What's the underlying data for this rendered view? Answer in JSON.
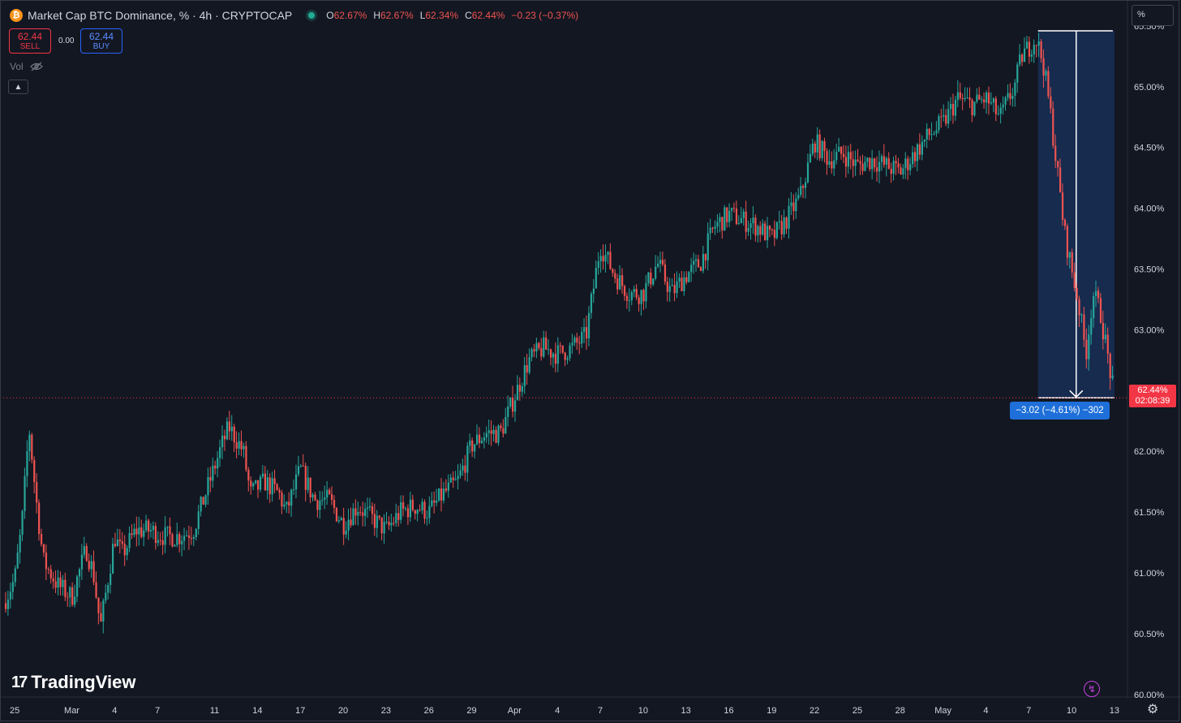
{
  "header": {
    "symbol_title": "Market Cap BTC Dominance, % · 4h · CRYPTOCAP",
    "open_label": "O",
    "open": "62.67%",
    "high_label": "H",
    "high": "62.67%",
    "low_label": "L",
    "low": "62.34%",
    "close_label": "C",
    "close": "62.44%",
    "change": "−0.23 (−0.37%)",
    "btc_logo_glyph": "₿"
  },
  "scale_mode": "%",
  "trade": {
    "sell_price": "62.44",
    "sell_label": "SELL",
    "spread": "0.00",
    "buy_price": "62.44",
    "buy_label": "BUY"
  },
  "indicator": {
    "vol_label": "Vol"
  },
  "branding": {
    "logo_text": "TradingView",
    "logo_mark": "17"
  },
  "current_price": {
    "value": "62.44%",
    "countdown": "02:08:39"
  },
  "measure": {
    "label": "−3.02 (−4.61%) −302",
    "from": 65.46,
    "to": 62.44
  },
  "colors": {
    "up": "#26a69a",
    "down": "#ef5350",
    "background": "#131722",
    "measure": "#1e6fd9"
  },
  "chart_data": {
    "type": "candlestick",
    "timeframe": "4h",
    "y_axis": {
      "ticks": [
        "65.50%",
        "65.00%",
        "64.50%",
        "64.00%",
        "63.50%",
        "63.00%",
        "62.50%",
        "62.00%",
        "61.50%",
        "61.00%",
        "60.50%",
        "60.00%"
      ],
      "ylim": [
        59.985,
        65.66
      ]
    },
    "x_axis": {
      "ticks": [
        "25",
        "Mar",
        "4",
        "7",
        "11",
        "14",
        "17",
        "20",
        "23",
        "26",
        "29",
        "Apr",
        "4",
        "7",
        "10",
        "13",
        "16",
        "19",
        "22",
        "25",
        "28",
        "May",
        "4",
        "7",
        "10",
        "13"
      ],
      "tick_days": [
        -4,
        0,
        3,
        6,
        10,
        13,
        16,
        19,
        22,
        25,
        28,
        31,
        34,
        37,
        40,
        43,
        46,
        49,
        52,
        55,
        58,
        61,
        64,
        67,
        70,
        73
      ],
      "range_days": [
        -4.8,
        73.8
      ]
    },
    "closes": [
      {
        "day": -4.8,
        "close": 60.75
      },
      {
        "day": -4.0,
        "close": 60.95
      },
      {
        "day": -3.5,
        "close": 61.4
      },
      {
        "day": -3.0,
        "close": 62.2
      },
      {
        "day": -2.5,
        "close": 61.6
      },
      {
        "day": -2.0,
        "close": 61.1
      },
      {
        "day": -1.0,
        "close": 60.9
      },
      {
        "day": 0.0,
        "close": 60.8
      },
      {
        "day": 1.0,
        "close": 61.2
      },
      {
        "day": 1.5,
        "close": 61.0
      },
      {
        "day": 2.0,
        "close": 60.55
      },
      {
        "day": 3.0,
        "close": 61.3
      },
      {
        "day": 3.5,
        "close": 61.15
      },
      {
        "day": 4.5,
        "close": 61.35
      },
      {
        "day": 5.5,
        "close": 61.35
      },
      {
        "day": 6.5,
        "close": 61.3
      },
      {
        "day": 7.5,
        "close": 61.3
      },
      {
        "day": 8.5,
        "close": 61.35
      },
      {
        "day": 9.5,
        "close": 61.7
      },
      {
        "day": 10.5,
        "close": 62.05
      },
      {
        "day": 11.0,
        "close": 62.2
      },
      {
        "day": 12.0,
        "close": 62.0
      },
      {
        "day": 12.5,
        "close": 61.65
      },
      {
        "day": 13.5,
        "close": 61.75
      },
      {
        "day": 14.5,
        "close": 61.65
      },
      {
        "day": 15.0,
        "close": 61.5
      },
      {
        "day": 16.0,
        "close": 61.85
      },
      {
        "day": 17.0,
        "close": 61.6
      },
      {
        "day": 18.0,
        "close": 61.6
      },
      {
        "day": 19.0,
        "close": 61.4
      },
      {
        "day": 20.0,
        "close": 61.55
      },
      {
        "day": 21.0,
        "close": 61.45
      },
      {
        "day": 22.0,
        "close": 61.35
      },
      {
        "day": 23.0,
        "close": 61.5
      },
      {
        "day": 24.0,
        "close": 61.55
      },
      {
        "day": 25.0,
        "close": 61.5
      },
      {
        "day": 26.0,
        "close": 61.65
      },
      {
        "day": 27.0,
        "close": 61.75
      },
      {
        "day": 28.0,
        "close": 62.05
      },
      {
        "day": 29.0,
        "close": 62.15
      },
      {
        "day": 30.0,
        "close": 62.15
      },
      {
        "day": 31.0,
        "close": 62.45
      },
      {
        "day": 32.0,
        "close": 62.75
      },
      {
        "day": 33.0,
        "close": 62.85
      },
      {
        "day": 34.0,
        "close": 62.8
      },
      {
        "day": 35.0,
        "close": 62.85
      },
      {
        "day": 36.0,
        "close": 62.95
      },
      {
        "day": 37.0,
        "close": 63.7
      },
      {
        "day": 38.0,
        "close": 63.45
      },
      {
        "day": 39.0,
        "close": 63.3
      },
      {
        "day": 40.0,
        "close": 63.3
      },
      {
        "day": 41.0,
        "close": 63.55
      },
      {
        "day": 42.0,
        "close": 63.3
      },
      {
        "day": 43.0,
        "close": 63.45
      },
      {
        "day": 44.0,
        "close": 63.55
      },
      {
        "day": 45.0,
        "close": 63.85
      },
      {
        "day": 46.0,
        "close": 63.95
      },
      {
        "day": 47.0,
        "close": 63.9
      },
      {
        "day": 48.0,
        "close": 63.85
      },
      {
        "day": 49.0,
        "close": 63.75
      },
      {
        "day": 50.0,
        "close": 63.9
      },
      {
        "day": 51.0,
        "close": 64.1
      },
      {
        "day": 52.0,
        "close": 64.55
      },
      {
        "day": 53.0,
        "close": 64.4
      },
      {
        "day": 54.0,
        "close": 64.45
      },
      {
        "day": 55.0,
        "close": 64.35
      },
      {
        "day": 56.0,
        "close": 64.4
      },
      {
        "day": 57.0,
        "close": 64.35
      },
      {
        "day": 58.0,
        "close": 64.3
      },
      {
        "day": 59.0,
        "close": 64.45
      },
      {
        "day": 60.0,
        "close": 64.6
      },
      {
        "day": 61.0,
        "close": 64.7
      },
      {
        "day": 62.0,
        "close": 64.9
      },
      {
        "day": 63.0,
        "close": 64.85
      },
      {
        "day": 64.0,
        "close": 64.9
      },
      {
        "day": 65.0,
        "close": 64.75
      },
      {
        "day": 66.0,
        "close": 65.0
      },
      {
        "day": 66.5,
        "close": 65.25
      },
      {
        "day": 67.5,
        "close": 65.4
      },
      {
        "day": 68.0,
        "close": 65.2
      },
      {
        "day": 68.5,
        "close": 64.8
      },
      {
        "day": 69.0,
        "close": 64.3
      },
      {
        "day": 69.5,
        "close": 63.8
      },
      {
        "day": 70.0,
        "close": 63.5
      },
      {
        "day": 70.5,
        "close": 63.2
      },
      {
        "day": 71.0,
        "close": 62.8
      },
      {
        "day": 71.5,
        "close": 63.3
      },
      {
        "day": 72.0,
        "close": 63.15
      },
      {
        "day": 72.5,
        "close": 62.8
      },
      {
        "day": 73.0,
        "close": 62.44
      }
    ]
  }
}
